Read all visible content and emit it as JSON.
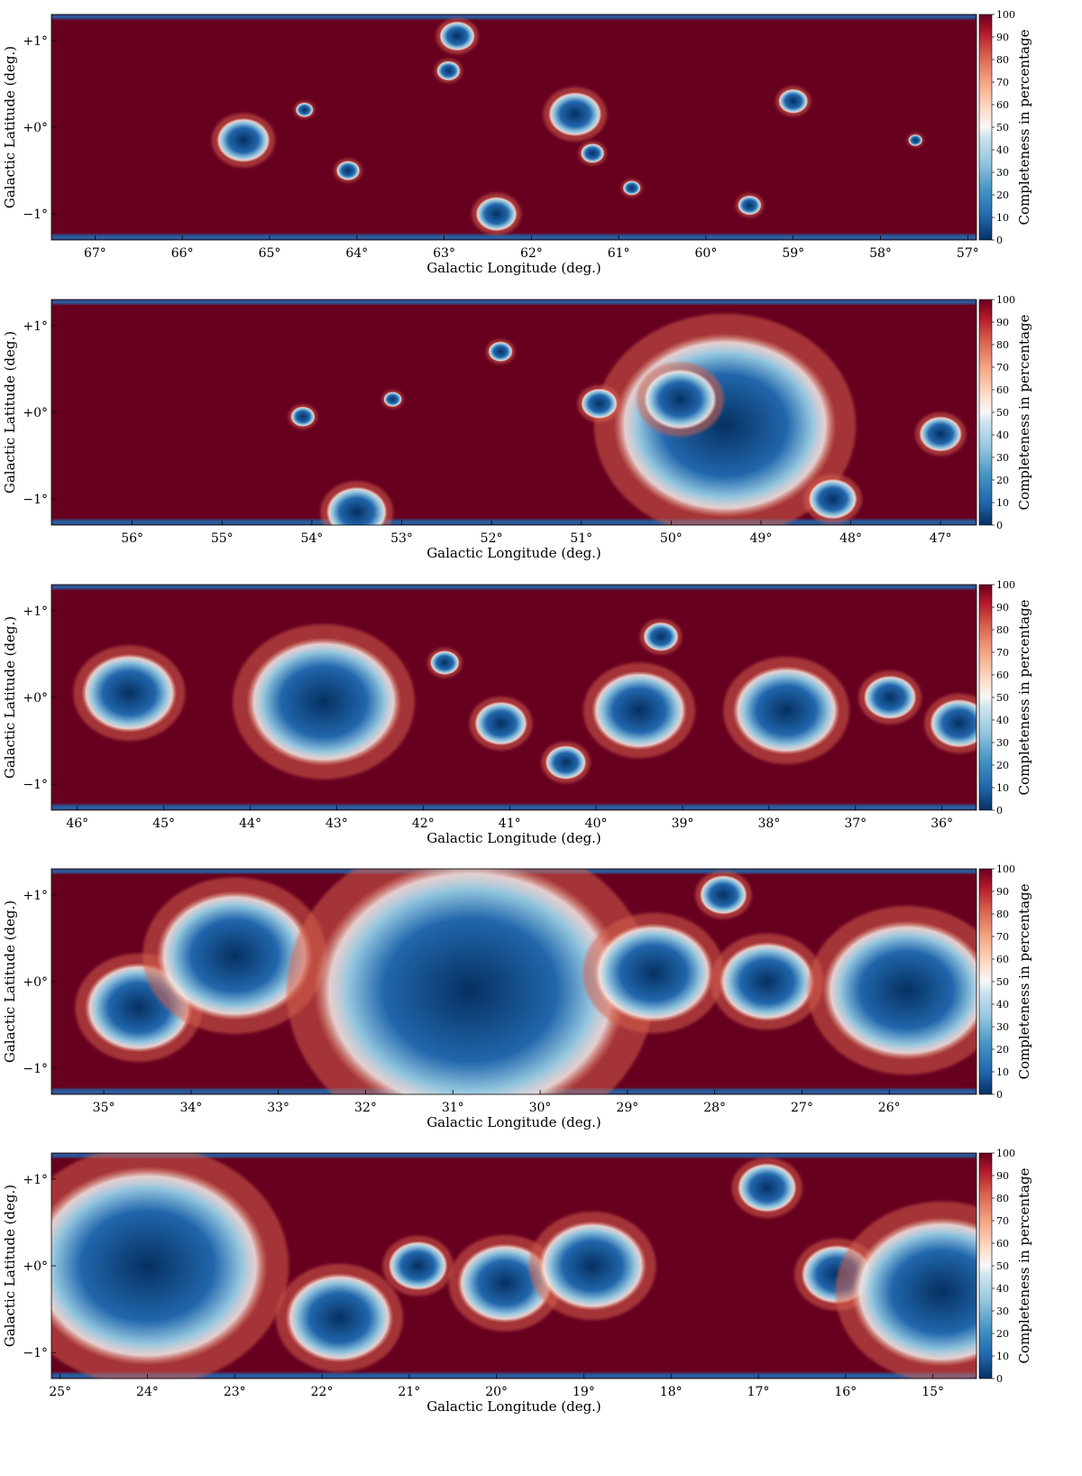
{
  "figure": {
    "colorbar": {
      "label": "Completeness in percentage",
      "ticks": [
        0,
        10,
        20,
        30,
        40,
        50,
        60,
        70,
        80,
        90,
        100
      ],
      "range": [
        0,
        100
      ],
      "colormap": "RdBu_r",
      "low_color": "#053061",
      "mid_color": "#f7f7f7",
      "high_color": "#67001f"
    },
    "x_axis_label": "Galactic Longitude (deg.)",
    "y_axis_label": "Galactic Latitude (deg.)",
    "y_tick_labels": [
      "+1°",
      "+0°",
      "−1°"
    ]
  },
  "chart_data": [
    {
      "type": "heatmap",
      "xlabel": "Galactic Longitude (deg.)",
      "ylabel": "Galactic Latitude (deg.)",
      "xlim": [
        67.5,
        56.9
      ],
      "ylim": [
        -1.3,
        1.3
      ],
      "x_tick_labels": [
        "67°",
        "66°",
        "65°",
        "64°",
        "63°",
        "62°",
        "61°",
        "60°",
        "59°",
        "58°",
        "57°"
      ],
      "y_tick_labels": [
        "+1°",
        "+0°",
        "−1°"
      ],
      "colorbar_label": "Completeness in percentage",
      "colorbar_range": [
        0,
        100
      ],
      "low_completeness_regions": [
        {
          "l": 65.3,
          "b": -0.15,
          "extent_deg": 0.45
        },
        {
          "l": 64.6,
          "b": 0.2,
          "extent_deg": 0.15
        },
        {
          "l": 64.1,
          "b": -0.5,
          "extent_deg": 0.2
        },
        {
          "l": 62.95,
          "b": 0.65,
          "extent_deg": 0.2
        },
        {
          "l": 62.85,
          "b": 1.05,
          "extent_deg": 0.3
        },
        {
          "l": 62.4,
          "b": -1.0,
          "extent_deg": 0.35
        },
        {
          "l": 61.5,
          "b": 0.15,
          "extent_deg": 0.45
        },
        {
          "l": 61.3,
          "b": -0.3,
          "extent_deg": 0.2
        },
        {
          "l": 60.85,
          "b": -0.7,
          "extent_deg": 0.15
        },
        {
          "l": 59.5,
          "b": -0.9,
          "extent_deg": 0.2
        },
        {
          "l": 59.0,
          "b": 0.3,
          "extent_deg": 0.25
        },
        {
          "l": 57.6,
          "b": -0.15,
          "extent_deg": 0.12
        }
      ]
    },
    {
      "type": "heatmap",
      "xlabel": "Galactic Longitude (deg.)",
      "ylabel": "Galactic Latitude (deg.)",
      "xlim": [
        56.9,
        46.6
      ],
      "ylim": [
        -1.3,
        1.3
      ],
      "x_tick_labels": [
        "56°",
        "55°",
        "54°",
        "53°",
        "52°",
        "51°",
        "50°",
        "49°",
        "48°",
        "47°"
      ],
      "y_tick_labels": [
        "+1°",
        "+0°",
        "−1°"
      ],
      "colorbar_label": "Completeness in percentage",
      "colorbar_range": [
        0,
        100
      ],
      "low_completeness_regions": [
        {
          "l": 49.4,
          "b": -0.15,
          "extent_deg": 1.8
        },
        {
          "l": 49.9,
          "b": 0.15,
          "extent_deg": 0.6
        },
        {
          "l": 48.2,
          "b": -1.0,
          "extent_deg": 0.4
        },
        {
          "l": 53.5,
          "b": -1.15,
          "extent_deg": 0.5
        },
        {
          "l": 54.1,
          "b": -0.05,
          "extent_deg": 0.2
        },
        {
          "l": 53.1,
          "b": 0.15,
          "extent_deg": 0.15
        },
        {
          "l": 51.9,
          "b": 0.7,
          "extent_deg": 0.2
        },
        {
          "l": 50.8,
          "b": 0.1,
          "extent_deg": 0.3
        },
        {
          "l": 47.0,
          "b": -0.25,
          "extent_deg": 0.35
        }
      ]
    },
    {
      "type": "heatmap",
      "xlabel": "Galactic Longitude (deg.)",
      "ylabel": "Galactic Latitude (deg.)",
      "xlim": [
        46.3,
        35.6
      ],
      "ylim": [
        -1.3,
        1.3
      ],
      "x_tick_labels": [
        "46°",
        "45°",
        "44°",
        "43°",
        "42°",
        "41°",
        "40°",
        "39°",
        "38°",
        "37°",
        "36°"
      ],
      "y_tick_labels": [
        "+1°",
        "+0°",
        "−1°"
      ],
      "colorbar_label": "Completeness in percentage",
      "colorbar_range": [
        0,
        100
      ],
      "low_completeness_regions": [
        {
          "l": 45.4,
          "b": 0.05,
          "extent_deg": 0.8
        },
        {
          "l": 43.15,
          "b": -0.05,
          "extent_deg": 1.3
        },
        {
          "l": 41.75,
          "b": 0.4,
          "extent_deg": 0.25
        },
        {
          "l": 41.1,
          "b": -0.3,
          "extent_deg": 0.45
        },
        {
          "l": 40.35,
          "b": -0.75,
          "extent_deg": 0.35
        },
        {
          "l": 39.25,
          "b": 0.7,
          "extent_deg": 0.3
        },
        {
          "l": 39.5,
          "b": -0.15,
          "extent_deg": 0.8
        },
        {
          "l": 37.8,
          "b": -0.15,
          "extent_deg": 0.9
        },
        {
          "l": 36.6,
          "b": 0.0,
          "extent_deg": 0.45
        },
        {
          "l": 35.8,
          "b": -0.3,
          "extent_deg": 0.5
        }
      ]
    },
    {
      "type": "heatmap",
      "xlabel": "Galactic Longitude (deg.)",
      "ylabel": "Galactic Latitude (deg.)",
      "xlim": [
        35.6,
        25.0
      ],
      "ylim": [
        -1.3,
        1.3
      ],
      "x_tick_labels": [
        "35°",
        "34°",
        "33°",
        "32°",
        "31°",
        "30°",
        "29°",
        "28°",
        "27°",
        "26°"
      ],
      "y_tick_labels": [
        "+1°",
        "+0°",
        "−1°"
      ],
      "colorbar_label": "Completeness in percentage",
      "colorbar_range": [
        0,
        100
      ],
      "low_completeness_regions": [
        {
          "l": 34.6,
          "b": -0.3,
          "extent_deg": 0.9
        },
        {
          "l": 33.5,
          "b": 0.3,
          "extent_deg": 1.3
        },
        {
          "l": 30.8,
          "b": -0.1,
          "extent_deg": 2.6
        },
        {
          "l": 28.7,
          "b": 0.1,
          "extent_deg": 1.0
        },
        {
          "l": 27.4,
          "b": 0.0,
          "extent_deg": 0.8
        },
        {
          "l": 25.8,
          "b": -0.1,
          "extent_deg": 1.4
        },
        {
          "l": 27.9,
          "b": 1.0,
          "extent_deg": 0.4
        }
      ]
    },
    {
      "type": "heatmap",
      "xlabel": "Galactic Longitude (deg.)",
      "ylabel": "Galactic Latitude (deg.)",
      "xlim": [
        25.1,
        14.5
      ],
      "ylim": [
        -1.3,
        1.3
      ],
      "x_tick_labels": [
        "25°",
        "24°",
        "23°",
        "22°",
        "21°",
        "20°",
        "19°",
        "18°",
        "17°",
        "16°",
        "15°"
      ],
      "y_tick_labels": [
        "+1°",
        "+0°",
        "−1°"
      ],
      "colorbar_label": "Completeness in percentage",
      "colorbar_range": [
        0,
        100
      ],
      "low_completeness_regions": [
        {
          "l": 24.0,
          "b": 0.0,
          "extent_deg": 2.0
        },
        {
          "l": 21.8,
          "b": -0.6,
          "extent_deg": 0.9
        },
        {
          "l": 20.9,
          "b": 0.0,
          "extent_deg": 0.5
        },
        {
          "l": 19.9,
          "b": -0.2,
          "extent_deg": 0.8
        },
        {
          "l": 18.9,
          "b": 0.0,
          "extent_deg": 0.9
        },
        {
          "l": 16.9,
          "b": 0.9,
          "extent_deg": 0.5
        },
        {
          "l": 16.1,
          "b": -0.1,
          "extent_deg": 0.6
        },
        {
          "l": 14.9,
          "b": -0.3,
          "extent_deg": 1.5
        }
      ]
    }
  ]
}
